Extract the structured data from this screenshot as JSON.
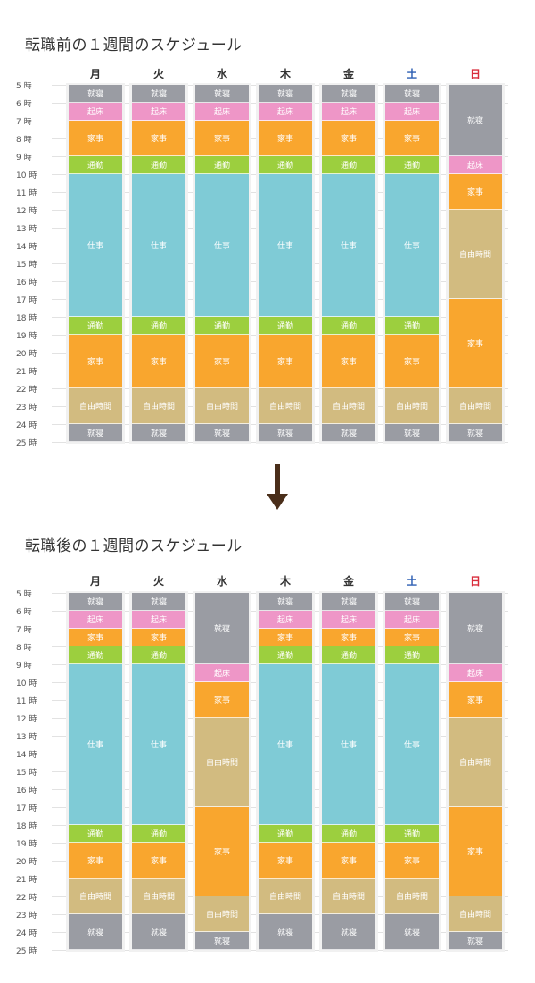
{
  "before": {
    "title": "転職前の１週間のスケジュール",
    "chart_data": {
      "type": "table",
      "title": "転職前の１週間のスケジュール",
      "days": [
        "月",
        "火",
        "水",
        "木",
        "金",
        "土",
        "日"
      ],
      "hours": [
        "5 時",
        "6 時",
        "7 時",
        "8 時",
        "9 時",
        "10 時",
        "11 時",
        "12 時",
        "13 時",
        "14 時",
        "15 時",
        "16 時",
        "17 時",
        "18 時",
        "19 時",
        "20 時",
        "21 時",
        "22 時",
        "23 時",
        "24 時",
        "25 時"
      ],
      "columns": [
        [
          {
            "label": "就寝",
            "start": 5,
            "end": 6
          },
          {
            "label": "起床",
            "start": 6,
            "end": 7
          },
          {
            "label": "家事",
            "start": 7,
            "end": 9
          },
          {
            "label": "通勤",
            "start": 9,
            "end": 10
          },
          {
            "label": "仕事",
            "start": 10,
            "end": 18
          },
          {
            "label": "通勤",
            "start": 18,
            "end": 19
          },
          {
            "label": "家事",
            "start": 19,
            "end": 22
          },
          {
            "label": "自由時間",
            "start": 22,
            "end": 24
          },
          {
            "label": "就寝",
            "start": 24,
            "end": 25
          }
        ],
        [
          {
            "label": "就寝",
            "start": 5,
            "end": 6
          },
          {
            "label": "起床",
            "start": 6,
            "end": 7
          },
          {
            "label": "家事",
            "start": 7,
            "end": 9
          },
          {
            "label": "通勤",
            "start": 9,
            "end": 10
          },
          {
            "label": "仕事",
            "start": 10,
            "end": 18
          },
          {
            "label": "通勤",
            "start": 18,
            "end": 19
          },
          {
            "label": "家事",
            "start": 19,
            "end": 22
          },
          {
            "label": "自由時間",
            "start": 22,
            "end": 24
          },
          {
            "label": "就寝",
            "start": 24,
            "end": 25
          }
        ],
        [
          {
            "label": "就寝",
            "start": 5,
            "end": 6
          },
          {
            "label": "起床",
            "start": 6,
            "end": 7
          },
          {
            "label": "家事",
            "start": 7,
            "end": 9
          },
          {
            "label": "通勤",
            "start": 9,
            "end": 10
          },
          {
            "label": "仕事",
            "start": 10,
            "end": 18
          },
          {
            "label": "通勤",
            "start": 18,
            "end": 19
          },
          {
            "label": "家事",
            "start": 19,
            "end": 22
          },
          {
            "label": "自由時間",
            "start": 22,
            "end": 24
          },
          {
            "label": "就寝",
            "start": 24,
            "end": 25
          }
        ],
        [
          {
            "label": "就寝",
            "start": 5,
            "end": 6
          },
          {
            "label": "起床",
            "start": 6,
            "end": 7
          },
          {
            "label": "家事",
            "start": 7,
            "end": 9
          },
          {
            "label": "通勤",
            "start": 9,
            "end": 10
          },
          {
            "label": "仕事",
            "start": 10,
            "end": 18
          },
          {
            "label": "通勤",
            "start": 18,
            "end": 19
          },
          {
            "label": "家事",
            "start": 19,
            "end": 22
          },
          {
            "label": "自由時間",
            "start": 22,
            "end": 24
          },
          {
            "label": "就寝",
            "start": 24,
            "end": 25
          }
        ],
        [
          {
            "label": "就寝",
            "start": 5,
            "end": 6
          },
          {
            "label": "起床",
            "start": 6,
            "end": 7
          },
          {
            "label": "家事",
            "start": 7,
            "end": 9
          },
          {
            "label": "通勤",
            "start": 9,
            "end": 10
          },
          {
            "label": "仕事",
            "start": 10,
            "end": 18
          },
          {
            "label": "通勤",
            "start": 18,
            "end": 19
          },
          {
            "label": "家事",
            "start": 19,
            "end": 22
          },
          {
            "label": "自由時間",
            "start": 22,
            "end": 24
          },
          {
            "label": "就寝",
            "start": 24,
            "end": 25
          }
        ],
        [
          {
            "label": "就寝",
            "start": 5,
            "end": 6
          },
          {
            "label": "起床",
            "start": 6,
            "end": 7
          },
          {
            "label": "家事",
            "start": 7,
            "end": 9
          },
          {
            "label": "通勤",
            "start": 9,
            "end": 10
          },
          {
            "label": "仕事",
            "start": 10,
            "end": 18
          },
          {
            "label": "通勤",
            "start": 18,
            "end": 19
          },
          {
            "label": "家事",
            "start": 19,
            "end": 22
          },
          {
            "label": "自由時間",
            "start": 22,
            "end": 24
          },
          {
            "label": "就寝",
            "start": 24,
            "end": 25
          }
        ],
        [
          {
            "label": "就寝",
            "start": 5,
            "end": 9
          },
          {
            "label": "起床",
            "start": 9,
            "end": 10
          },
          {
            "label": "家事",
            "start": 10,
            "end": 12
          },
          {
            "label": "自由時間",
            "start": 12,
            "end": 17
          },
          {
            "label": "家事",
            "start": 17,
            "end": 22
          },
          {
            "label": "自由時間",
            "start": 22,
            "end": 24
          },
          {
            "label": "就寝",
            "start": 24,
            "end": 25
          }
        ]
      ]
    }
  },
  "after": {
    "title": "転職後の１週間のスケジュール",
    "chart_data": {
      "type": "table",
      "title": "転職後の１週間のスケジュール",
      "days": [
        "月",
        "火",
        "水",
        "木",
        "金",
        "土",
        "日"
      ],
      "hours": [
        "5 時",
        "6 時",
        "7 時",
        "8 時",
        "9 時",
        "10 時",
        "11 時",
        "12 時",
        "13 時",
        "14 時",
        "15 時",
        "16 時",
        "17 時",
        "18 時",
        "19 時",
        "20 時",
        "21 時",
        "22 時",
        "23 時",
        "24 時",
        "25 時"
      ],
      "columns": [
        [
          {
            "label": "就寝",
            "start": 5,
            "end": 6
          },
          {
            "label": "起床",
            "start": 6,
            "end": 7
          },
          {
            "label": "家事",
            "start": 7,
            "end": 8
          },
          {
            "label": "通勤",
            "start": 8,
            "end": 9
          },
          {
            "label": "仕事",
            "start": 9,
            "end": 18
          },
          {
            "label": "通勤",
            "start": 18,
            "end": 19
          },
          {
            "label": "家事",
            "start": 19,
            "end": 21
          },
          {
            "label": "自由時間",
            "start": 21,
            "end": 23
          },
          {
            "label": "就寝",
            "start": 23,
            "end": 25
          }
        ],
        [
          {
            "label": "就寝",
            "start": 5,
            "end": 6
          },
          {
            "label": "起床",
            "start": 6,
            "end": 7
          },
          {
            "label": "家事",
            "start": 7,
            "end": 8
          },
          {
            "label": "通勤",
            "start": 8,
            "end": 9
          },
          {
            "label": "仕事",
            "start": 9,
            "end": 18
          },
          {
            "label": "通勤",
            "start": 18,
            "end": 19
          },
          {
            "label": "家事",
            "start": 19,
            "end": 21
          },
          {
            "label": "自由時間",
            "start": 21,
            "end": 23
          },
          {
            "label": "就寝",
            "start": 23,
            "end": 25
          }
        ],
        [
          {
            "label": "就寝",
            "start": 5,
            "end": 9
          },
          {
            "label": "起床",
            "start": 9,
            "end": 10
          },
          {
            "label": "家事",
            "start": 10,
            "end": 12
          },
          {
            "label": "自由時間",
            "start": 12,
            "end": 17
          },
          {
            "label": "家事",
            "start": 17,
            "end": 22
          },
          {
            "label": "自由時間",
            "start": 22,
            "end": 24
          },
          {
            "label": "就寝",
            "start": 24,
            "end": 25
          }
        ],
        [
          {
            "label": "就寝",
            "start": 5,
            "end": 6
          },
          {
            "label": "起床",
            "start": 6,
            "end": 7
          },
          {
            "label": "家事",
            "start": 7,
            "end": 8
          },
          {
            "label": "通勤",
            "start": 8,
            "end": 9
          },
          {
            "label": "仕事",
            "start": 9,
            "end": 18
          },
          {
            "label": "通勤",
            "start": 18,
            "end": 19
          },
          {
            "label": "家事",
            "start": 19,
            "end": 21
          },
          {
            "label": "自由時間",
            "start": 21,
            "end": 23
          },
          {
            "label": "就寝",
            "start": 23,
            "end": 25
          }
        ],
        [
          {
            "label": "就寝",
            "start": 5,
            "end": 6
          },
          {
            "label": "起床",
            "start": 6,
            "end": 7
          },
          {
            "label": "家事",
            "start": 7,
            "end": 8
          },
          {
            "label": "通勤",
            "start": 8,
            "end": 9
          },
          {
            "label": "仕事",
            "start": 9,
            "end": 18
          },
          {
            "label": "通勤",
            "start": 18,
            "end": 19
          },
          {
            "label": "家事",
            "start": 19,
            "end": 21
          },
          {
            "label": "自由時間",
            "start": 21,
            "end": 23
          },
          {
            "label": "就寝",
            "start": 23,
            "end": 25
          }
        ],
        [
          {
            "label": "就寝",
            "start": 5,
            "end": 6
          },
          {
            "label": "起床",
            "start": 6,
            "end": 7
          },
          {
            "label": "家事",
            "start": 7,
            "end": 8
          },
          {
            "label": "通勤",
            "start": 8,
            "end": 9
          },
          {
            "label": "仕事",
            "start": 9,
            "end": 18
          },
          {
            "label": "通勤",
            "start": 18,
            "end": 19
          },
          {
            "label": "家事",
            "start": 19,
            "end": 21
          },
          {
            "label": "自由時間",
            "start": 21,
            "end": 23
          },
          {
            "label": "就寝",
            "start": 23,
            "end": 25
          }
        ],
        [
          {
            "label": "就寝",
            "start": 5,
            "end": 9
          },
          {
            "label": "起床",
            "start": 9,
            "end": 10
          },
          {
            "label": "家事",
            "start": 10,
            "end": 12
          },
          {
            "label": "自由時間",
            "start": 12,
            "end": 17
          },
          {
            "label": "家事",
            "start": 17,
            "end": 22
          },
          {
            "label": "自由時間",
            "start": 22,
            "end": 24
          },
          {
            "label": "就寝",
            "start": 24,
            "end": 25
          }
        ]
      ]
    }
  },
  "colors": {
    "就寝": "#9a9ca3",
    "起床": "#ee96c7",
    "家事": "#f9a62e",
    "通勤": "#9ccf3e",
    "仕事": "#7fcbd6",
    "自由時間": "#d2bb80"
  },
  "day_colors": [
    "#333333",
    "#333333",
    "#333333",
    "#333333",
    "#333333",
    "#2e5fb3",
    "#d92d3c"
  ]
}
